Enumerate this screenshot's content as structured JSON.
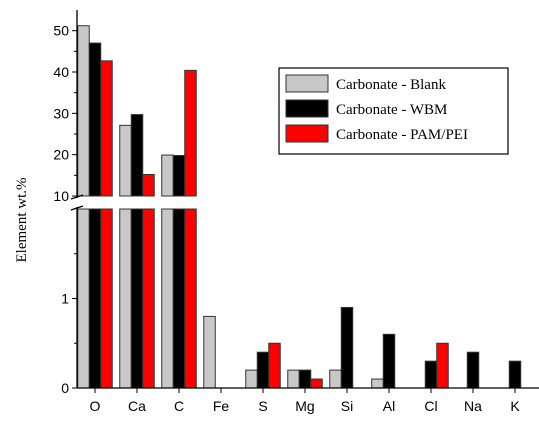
{
  "chart_data": {
    "type": "bar",
    "title": "",
    "xlabel": "",
    "ylabel": "Element wt.%",
    "axis_break": true,
    "upper_ylim": [
      10,
      55
    ],
    "upper_yticks": [
      10,
      20,
      30,
      40,
      50
    ],
    "lower_ylim": [
      0,
      2
    ],
    "lower_yticks": [
      0,
      1
    ],
    "legend_position": "upper-right",
    "categories": [
      "O",
      "Ca",
      "C",
      "Fe",
      "S",
      "Mg",
      "Si",
      "Al",
      "Cl",
      "Na",
      "K"
    ],
    "series": [
      {
        "name": "Carbonate - Blank",
        "color": "#c8c8c8",
        "values": [
          51.2,
          27.1,
          19.9,
          0.8,
          0.2,
          0.2,
          0.2,
          0.1,
          null,
          null,
          null
        ]
      },
      {
        "name": "Carbonate - WBM",
        "color": "#000000",
        "values": [
          47.0,
          29.7,
          19.8,
          null,
          0.4,
          0.2,
          0.9,
          0.6,
          0.3,
          0.4,
          0.3
        ]
      },
      {
        "name": "Carbonate - PAM/PEI",
        "color": "#ff0000",
        "values": [
          42.7,
          15.2,
          40.4,
          null,
          0.5,
          0.1,
          null,
          null,
          0.5,
          null,
          null
        ]
      }
    ]
  }
}
